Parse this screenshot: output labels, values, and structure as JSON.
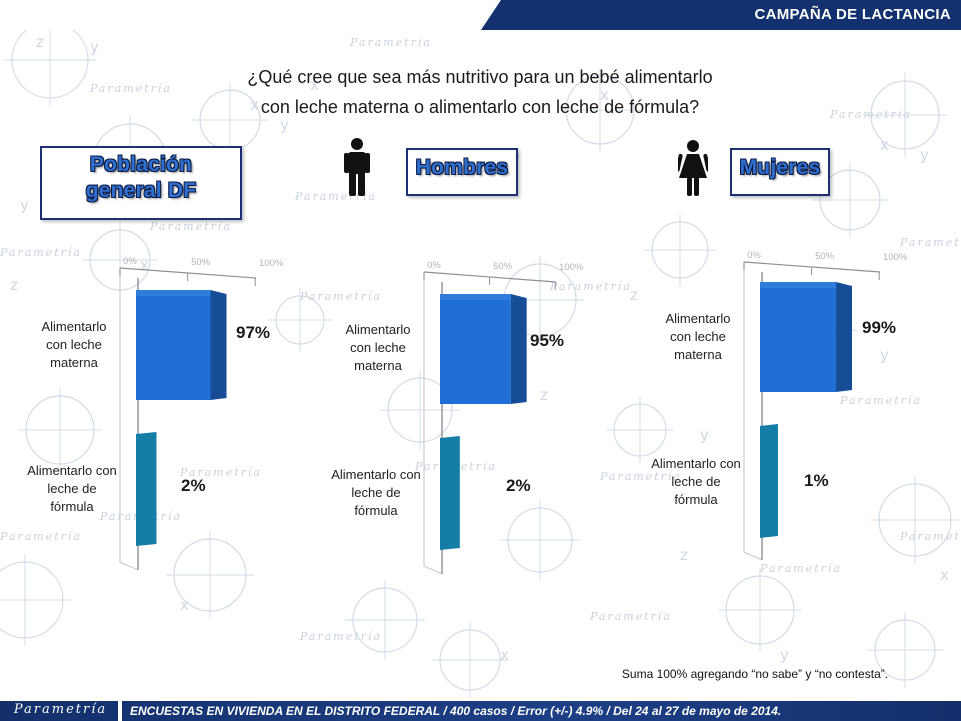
{
  "header": {
    "title": "CAMPAÑA DE LACTANCIA",
    "question_line1": "¿Qué cree que sea más nutritivo para un bebé alimentarlo",
    "question_line2": "con leche materna o alimentarlo con leche de fórmula?"
  },
  "background": {
    "watermark": "Parametría"
  },
  "sections": [
    {
      "title": "Población general DF"
    },
    {
      "title": "Hombres",
      "icon": "male-person-icon"
    },
    {
      "title": "Mujeres",
      "icon": "female-person-icon"
    }
  ],
  "chart_data": [
    {
      "type": "bar",
      "orientation": "horizontal",
      "title": "Población general DF",
      "categories": [
        "Alimentarlo con leche materna",
        "Alimentarlo con leche de fórmula"
      ],
      "values": [
        97,
        2
      ],
      "value_labels": [
        "97%",
        "2%"
      ],
      "axis_ticks": [
        "0%",
        "50%",
        "100%"
      ],
      "xlim": [
        0,
        100
      ],
      "grid": false
    },
    {
      "type": "bar",
      "orientation": "horizontal",
      "title": "Hombres",
      "categories": [
        "Alimentarlo con leche materna",
        "Alimentarlo con leche de fórmula"
      ],
      "values": [
        95,
        2
      ],
      "value_labels": [
        "95%",
        "2%"
      ],
      "axis_ticks": [
        "0%",
        "50%",
        "100%"
      ],
      "xlim": [
        0,
        100
      ],
      "grid": false
    },
    {
      "type": "bar",
      "orientation": "horizontal",
      "title": "Mujeres",
      "categories": [
        "Alimentarlo con leche materna",
        "Alimentarlo con leche de fórmula"
      ],
      "values": [
        99,
        1
      ],
      "value_labels": [
        "99%",
        "1%"
      ],
      "axis_ticks": [
        "0%",
        "50%",
        "100%"
      ],
      "xlim": [
        0,
        100
      ],
      "grid": false
    }
  ],
  "colors": {
    "header_band": "#12316e",
    "box_border": "#1f2f74",
    "title_fill": "#2e6fd0",
    "bar_materna": "#1f6fd6",
    "bar_materna_side": "#174d96",
    "bar_formula": "#157ea6"
  },
  "note": "Suma 100%  agregando “no sabe” y “no contesta”.",
  "footer": {
    "brand": "Parametría",
    "text": "ENCUESTAS EN VIVIENDA EN EL DISTRITO FEDERAL / 400 casos / Error (+/-) 4.9% / Del 24 al 27 de mayo de 2014."
  }
}
